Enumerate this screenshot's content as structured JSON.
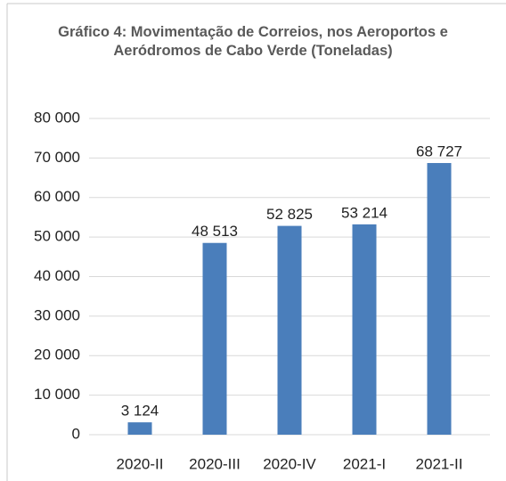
{
  "chart_data": {
    "type": "bar",
    "title": "Gráfico 4: Movimentação de Correios, nos Aeroportos e Aeródromos de Cabo Verde (Toneladas)",
    "categories": [
      "2020-II",
      "2020-III",
      "2020-IV",
      "2021-I",
      "2021-II"
    ],
    "values": [
      3124,
      48513,
      52825,
      53214,
      68727
    ],
    "value_labels": [
      "3 124",
      "48 513",
      "52 825",
      "53 214",
      "68 727"
    ],
    "color": "#4a7ebb",
    "ylim": [
      0,
      80000
    ],
    "yticks": [
      0,
      {
        "value": 10000,
        "label": "10 000"
      },
      {
        "value": 20000,
        "label": "20 000"
      },
      {
        "value": 30000,
        "label": "30 000"
      },
      {
        "value": 40000,
        "label": "40 000"
      },
      {
        "value": 50000,
        "label": "50 000"
      },
      {
        "value": 60000,
        "label": "60 000"
      },
      {
        "value": 70000,
        "label": "70 000"
      },
      {
        "value": 80000,
        "label": "80 000"
      }
    ],
    "grid": true
  }
}
